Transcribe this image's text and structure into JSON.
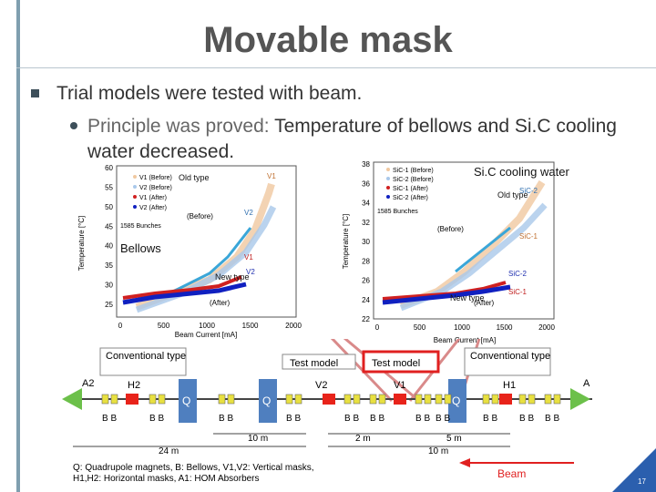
{
  "slide": {
    "title": "Movable mask",
    "bullet1": "Trial models were tested with beam.",
    "bullet2_prefix": "Principle was proved: ",
    "bullet2_rest": "Temperature of bellows and Si.C cooling water decreased.",
    "page_number": "17",
    "colors": {
      "accent_red": "#e02020",
      "title": "#555555",
      "qmag": "#4f7fbf",
      "absorber": "#6cc04a",
      "mask": "#e8231a",
      "bellows": "#e8e040"
    }
  },
  "charts": {
    "left": {
      "ylabel": "Temperature [°C]",
      "xlabel": "Beam Current [mA]",
      "xticks": [
        "0",
        "500",
        "1000",
        "1500",
        "2000"
      ],
      "yticks": [
        "60",
        "55",
        "50",
        "45",
        "40",
        "35",
        "30",
        "25"
      ],
      "legend": [
        "V1 (Before)",
        "V2 (Before)",
        "V1 (After)",
        "V2 (After)"
      ],
      "bunches": "1585 Bunches",
      "labels": {
        "before": "(Before)",
        "after": "(After)",
        "v1_top": "V1",
        "v2_top": "V2",
        "v1_bot": "V1",
        "v2_bot": "V2"
      }
    },
    "right": {
      "ylabel": "Temperature [°C]",
      "xlabel": "Beam Current [mA]",
      "xticks": [
        "0",
        "500",
        "1000",
        "1500",
        "2000"
      ],
      "yticks": [
        "38",
        "36",
        "34",
        "32",
        "30",
        "28",
        "26",
        "24",
        "22"
      ],
      "legend": [
        "SiC-1 (Before)",
        "SiC-2 (Before)",
        "SiC-1 (After)",
        "SiC-2 (After)"
      ],
      "bunches": "1585 Bunches",
      "labels": {
        "before": "(Before)",
        "after": "(After)",
        "sic2_top": "SiC-2",
        "sic1_top": "SiC-1",
        "sic2_bot": "SiC-2",
        "sic1_bot": "SiC-1"
      }
    }
  },
  "annotations": {
    "old_type_left": "Old type",
    "bellows": "Bellows",
    "new_type_left": "New type",
    "sic_cooling": "Si.C cooling water",
    "old_type_right": "Old type",
    "new_type_right": "New type"
  },
  "diagram": {
    "conv_left": "Conventional type",
    "test_model_1": "Test model",
    "test_model_2": "Test model",
    "conv_right": "Conventional type",
    "labels": {
      "a2": "A2",
      "h2": "H2",
      "q": "Q",
      "v2": "V2",
      "v1": "V1",
      "h1": "H1",
      "a1": "A"
    },
    "bb": "B B",
    "dims": {
      "d10a": "10 m",
      "d2": "2 m",
      "d5": "5 m",
      "d24": "24 m",
      "d10b": "10 m"
    },
    "legend_line1": "Q: Quadrupole magnets, B: Bellows, V1,V2: Vertical masks,",
    "legend_line2": "H1,H2: Horizontal masks, A1: HOM Absorbers",
    "beam": "Beam"
  }
}
